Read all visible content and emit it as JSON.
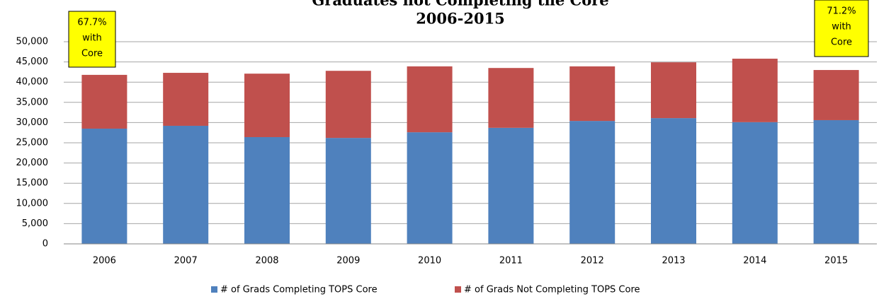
{
  "chart_data": {
    "type": "bar",
    "stacked": true,
    "title": [
      "Graduates not Completing the Core",
      "2006-2015"
    ],
    "categories": [
      "2006",
      "2007",
      "2008",
      "2009",
      "2010",
      "2011",
      "2012",
      "2013",
      "2014",
      "2015"
    ],
    "series": [
      {
        "name": "# of Grads Completing TOPS Core",
        "color": "#4f81bd",
        "values": [
          28500,
          29200,
          26400,
          26200,
          27600,
          28700,
          30400,
          31100,
          30100,
          30600
        ]
      },
      {
        "name": "# of Grads Not Completing TOPS Core",
        "color": "#c0504d",
        "values": [
          13300,
          13100,
          15700,
          16600,
          16300,
          14800,
          13500,
          13800,
          15700,
          12400
        ]
      }
    ],
    "ylim": [
      0,
      50000
    ],
    "yticks": [
      0,
      {
        "value": 5000,
        "label": "5,000"
      },
      {
        "value": 10000,
        "label": "10,000"
      },
      {
        "value": 15000,
        "label": "15,000"
      },
      {
        "value": 20000,
        "label": "20,000"
      },
      {
        "value": 25000,
        "label": "25,000"
      },
      {
        "value": 30000,
        "label": "30,000"
      },
      {
        "value": 35000,
        "label": "35,000"
      },
      {
        "value": 40000,
        "label": "40,000"
      },
      {
        "value": 45000,
        "label": "45,000"
      },
      {
        "value": 50000,
        "label": "50,000"
      }
    ],
    "grid": true,
    "legend": "bottom",
    "annotations": [
      {
        "lines": [
          "67.7%",
          "with",
          "Core"
        ],
        "color": "#ffff00"
      },
      {
        "lines": [
          "71.2%",
          "with",
          "Core"
        ],
        "color": "#ffff00"
      }
    ]
  }
}
